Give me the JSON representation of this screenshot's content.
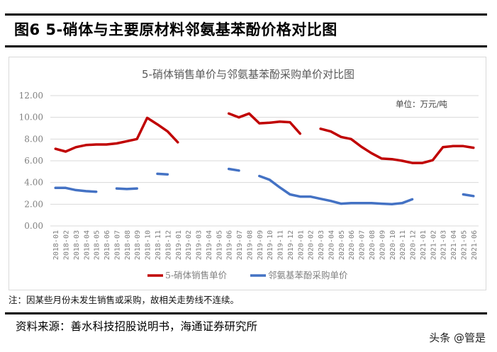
{
  "figure": {
    "title": "图6   5-硝体与主要原材料邻氨基苯酚价格对比图",
    "note": "注：因某些月份未发生销售或采购，故相关走势线不连续。",
    "source": "资料来源：善水科技招股说明书，海通证券研究所",
    "watermark": "头条 @管是"
  },
  "chart_data": {
    "type": "line",
    "title": "5-硝体销售单价与邻氨基苯酚采购单价对比图",
    "unit_label": "单位：万元/吨",
    "xlabel": "",
    "ylabel": "",
    "ylim": [
      0,
      12
    ],
    "yticks": [
      "0.00",
      "2.00",
      "4.00",
      "6.00",
      "8.00",
      "10.00",
      "12.00"
    ],
    "ytick_values": [
      0,
      2,
      4,
      6,
      8,
      10,
      12
    ],
    "grid": true,
    "legend_position": "bottom",
    "categories": [
      "2018-01",
      "2018-02",
      "2018-03",
      "2018-04",
      "2018-05",
      "2018-06",
      "2018-07",
      "2018-08",
      "2018-09",
      "2018-10",
      "2018-11",
      "2018-12",
      "2019-01",
      "2019-02",
      "2019-03",
      "2019-04",
      "2019-05",
      "2019-06",
      "2019-07",
      "2019-08",
      "2019-09",
      "2019-10",
      "2019-11",
      "2019-12",
      "2020-01",
      "2020-02",
      "2020-03",
      "2020-04",
      "2020-05",
      "2020-06",
      "2020-07",
      "2020-08",
      "2020-09",
      "2020-10",
      "2020-11",
      "2020-12",
      "2021-01",
      "2021-02",
      "2021-03",
      "2021-04",
      "2021-05",
      "2021-06"
    ],
    "series": [
      {
        "name": "5-硝体销售单价",
        "color": "#C00000",
        "values": [
          7.1,
          6.85,
          7.25,
          7.45,
          7.5,
          7.5,
          7.6,
          7.8,
          8.0,
          9.95,
          9.35,
          8.7,
          7.7,
          null,
          null,
          null,
          null,
          10.35,
          10.0,
          10.35,
          9.45,
          9.5,
          9.6,
          9.55,
          8.5,
          null,
          8.95,
          8.7,
          8.2,
          8.0,
          7.3,
          6.7,
          6.2,
          6.15,
          6.0,
          5.8,
          5.8,
          6.05,
          7.25,
          7.35,
          7.35,
          7.2
        ]
      },
      {
        "name": "邻氨基苯酚采购单价",
        "color": "#4472C4",
        "values": [
          3.5,
          3.5,
          3.3,
          3.2,
          3.15,
          null,
          3.45,
          3.4,
          3.45,
          null,
          4.8,
          4.75,
          null,
          null,
          null,
          null,
          null,
          5.25,
          5.1,
          null,
          4.6,
          4.25,
          3.55,
          2.9,
          2.7,
          2.7,
          2.5,
          2.3,
          2.05,
          2.1,
          2.1,
          2.1,
          2.05,
          2.0,
          2.1,
          2.45,
          null,
          null,
          null,
          null,
          2.9,
          2.75
        ]
      }
    ]
  }
}
